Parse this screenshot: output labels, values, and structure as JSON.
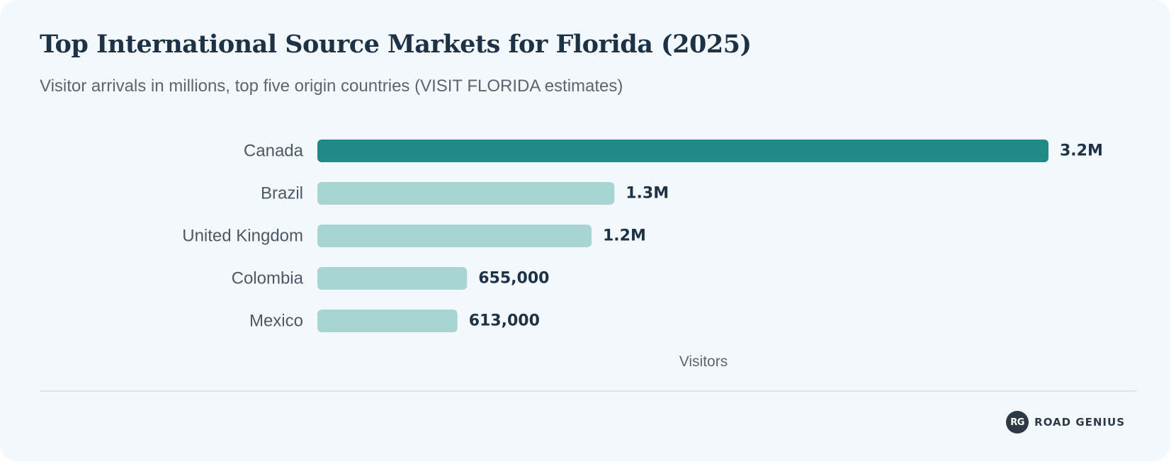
{
  "chart_data": {
    "type": "bar",
    "orientation": "horizontal",
    "title": "Top International Source Markets for Florida (2025)",
    "subtitle": "Visitor arrivals in millions, top five origin countries (VISIT FLORIDA estimates)",
    "xlabel": "Visitors",
    "ylabel": "",
    "categories": [
      "Canada",
      "Brazil",
      "United Kingdom",
      "Colombia",
      "Mexico"
    ],
    "values": [
      3200000,
      1300000,
      1200000,
      655000,
      613000
    ],
    "value_labels": [
      "3.2M",
      "1.3M",
      "1.2M",
      "655,000",
      "613,000"
    ],
    "xlim": [
      0,
      3200000
    ],
    "grid": false,
    "legend": "none",
    "highlight_index": 0,
    "colors": {
      "highlight": "#218a87",
      "default": "#a8d5d2"
    }
  },
  "brand": {
    "badge": "RG",
    "name": "ROAD GENIUS"
  }
}
